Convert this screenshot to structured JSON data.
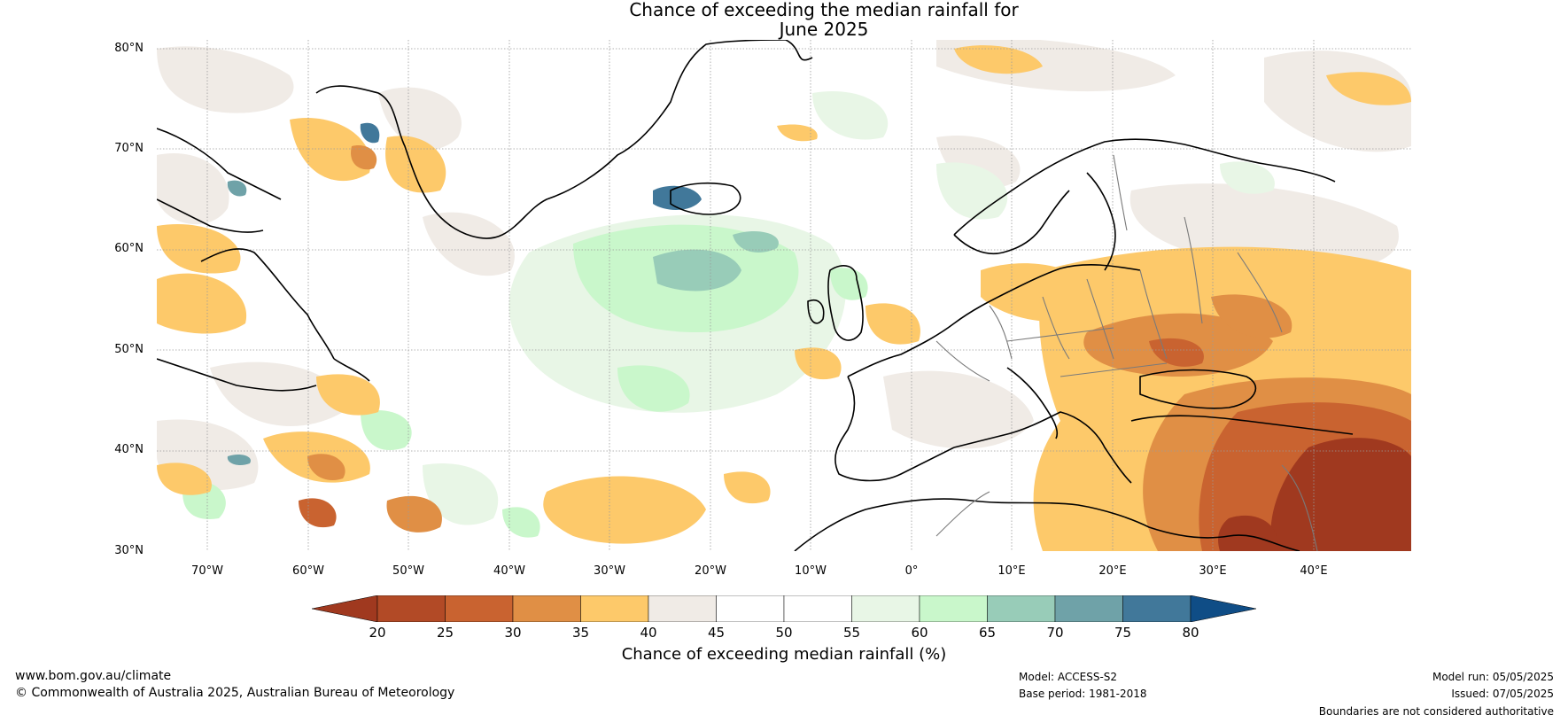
{
  "title": {
    "line1": "Chance of exceeding the median rainfall for",
    "line2": "June 2025"
  },
  "map": {
    "lat_labels": [
      "80°N",
      "70°N",
      "60°N",
      "50°N",
      "40°N",
      "30°N"
    ],
    "lon_labels": [
      "70°W",
      "60°W",
      "50°W",
      "40°W",
      "30°W",
      "20°W",
      "10°W",
      "0°",
      "10°E",
      "20°E",
      "30°E",
      "40°E"
    ]
  },
  "colorbar": {
    "ticks": [
      "20",
      "25",
      "30",
      "35",
      "40",
      "45",
      "50",
      "55",
      "60",
      "65",
      "70",
      "75",
      "80"
    ],
    "colors": [
      "#a0391f",
      "#b24a26",
      "#c96330",
      "#e08f45",
      "#fdc96a",
      "#f0ebe6",
      "#ffffff",
      "#ffffff",
      "#e8f6e6",
      "#c9f7cb",
      "#98ccb8",
      "#6fa2a8",
      "#41789a",
      "#0f4d86"
    ],
    "label": "Chance of exceeding median rainfall (%)"
  },
  "footer": {
    "website": "www.bom.gov.au/climate",
    "copyright": "© Commonwealth of Australia 2025, Australian Bureau of Meteorology",
    "model": "Model: ACCESS-S2",
    "base_period": "Base period: 1981-2018",
    "model_run": "Model run: 05/05/2025",
    "issued": "Issued: 07/05/2025",
    "disclaimer": "Boundaries are not considered authoritative"
  }
}
